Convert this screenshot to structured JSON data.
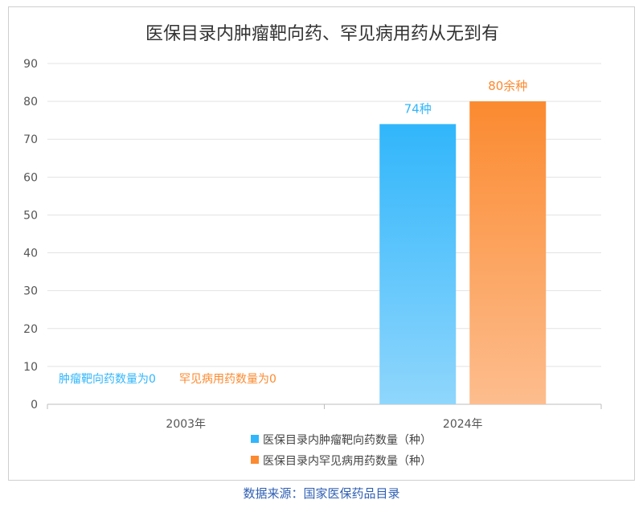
{
  "chart_data": {
    "type": "bar",
    "title": "医保目录内肿瘤靶向药、罕见病用药从无到有",
    "categories": [
      "2003年",
      "2024年"
    ],
    "series": [
      {
        "name": "医保目录内肿瘤靶向药数量（种）",
        "values": [
          0,
          74
        ],
        "color": "#31b6fb",
        "color_light": "#8fd6fc"
      },
      {
        "name": "医保目录内罕见病用药数量（种）",
        "values": [
          0,
          80
        ],
        "color": "#fb8a30",
        "color_light": "#fdbd8e"
      }
    ],
    "data_labels": {
      "2003年": [
        "肿瘤靶向药数量为0",
        "罕见病用药数量为0"
      ],
      "2024年": [
        "74种",
        "80余种"
      ]
    },
    "ylim": [
      0,
      90
    ],
    "yticks": [
      0,
      10,
      20,
      30,
      40,
      50,
      60,
      70,
      80,
      90
    ],
    "grid": true,
    "legend_position": "bottom"
  },
  "source": "数据来源：国家医保药品目录"
}
